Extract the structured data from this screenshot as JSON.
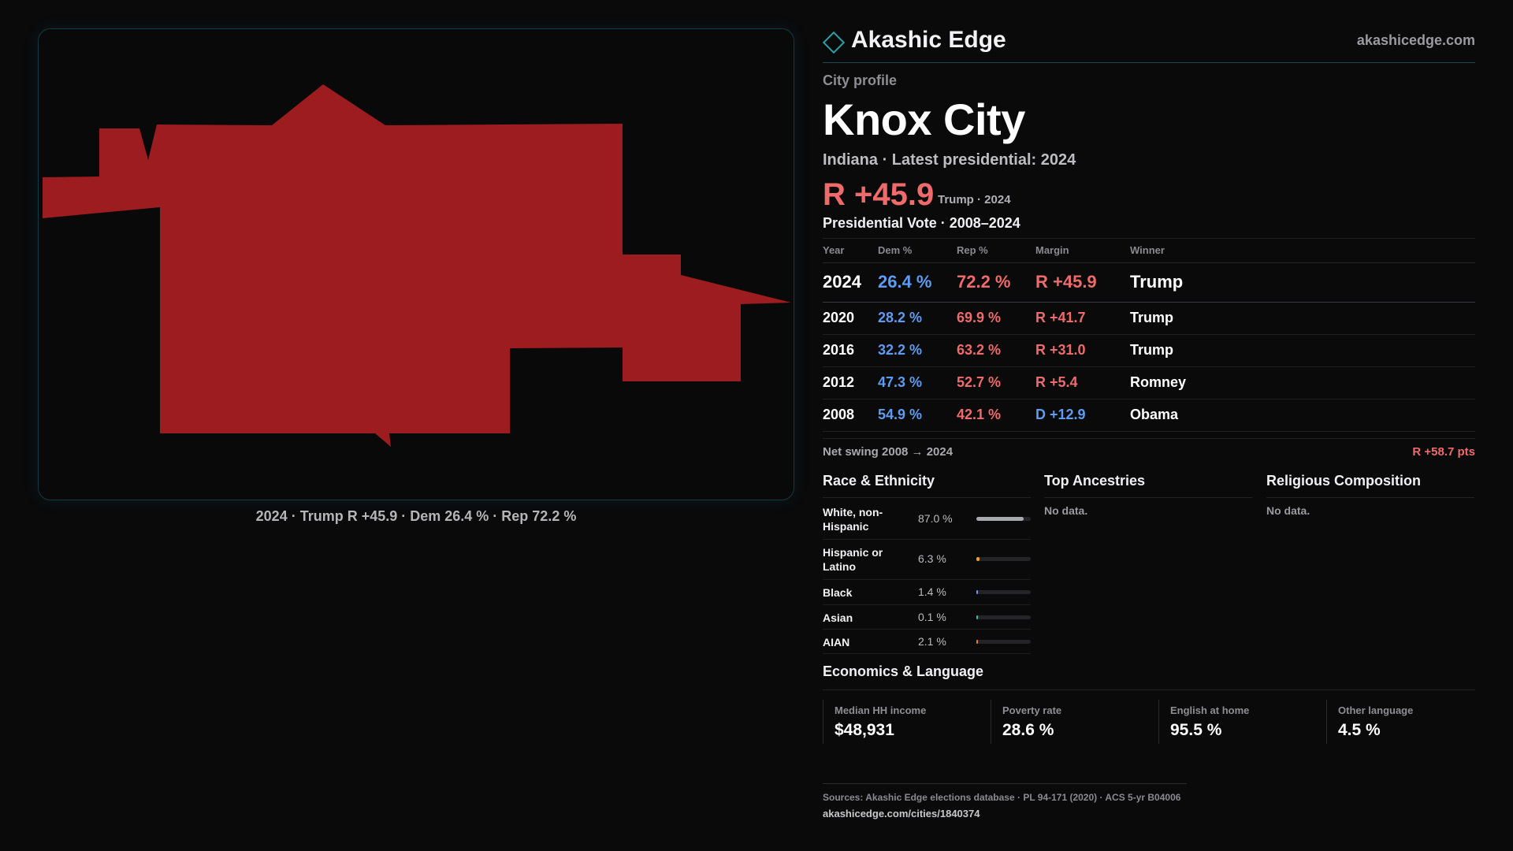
{
  "brand": {
    "name": "Akashic Edge",
    "url": "akashicedge.com"
  },
  "profile": {
    "eyebrow": "City profile",
    "city": "Knox City",
    "subtitle": "Indiana · Latest presidential: 2024",
    "headline_margin": "R +45.9",
    "headline_note": "Trump · 2024"
  },
  "map": {
    "caption": "2024 · Trump R +45.9 · Dem 26.4 % · Rep 72.2 %",
    "fill_color": "#9c1c1f",
    "border_color": "#123a44"
  },
  "votes": {
    "title": "Presidential Vote · 2008–2024",
    "headers": [
      "Year",
      "Dem %",
      "Rep %",
      "Margin",
      "Winner"
    ],
    "rows": [
      {
        "year": "2024",
        "dem": "26.4 %",
        "rep": "72.2 %",
        "margin": "R +45.9",
        "party": "R",
        "winner": "Trump"
      },
      {
        "year": "2020",
        "dem": "28.2 %",
        "rep": "69.9 %",
        "margin": "R +41.7",
        "party": "R",
        "winner": "Trump"
      },
      {
        "year": "2016",
        "dem": "32.2 %",
        "rep": "63.2 %",
        "margin": "R +31.0",
        "party": "R",
        "winner": "Trump"
      },
      {
        "year": "2012",
        "dem": "47.3 %",
        "rep": "52.7 %",
        "margin": "R +5.4",
        "party": "R",
        "winner": "Romney"
      },
      {
        "year": "2008",
        "dem": "54.9 %",
        "rep": "42.1 %",
        "margin": "D +12.9",
        "party": "D",
        "winner": "Obama"
      }
    ],
    "swing_label": "Net swing 2008 → 2024",
    "swing_value": "R +58.7 pts"
  },
  "race": {
    "title": "Race & Ethnicity",
    "rows": [
      {
        "label": "White, non-Hispanic",
        "pct": "87.0 %",
        "value": 0.87,
        "color": "#a9aab0"
      },
      {
        "label": "Hispanic or Latino",
        "pct": "6.3 %",
        "value": 0.063,
        "color": "#f0a020"
      },
      {
        "label": "Black",
        "pct": "1.4 %",
        "value": 0.014,
        "color": "#7f8cff"
      },
      {
        "label": "Asian",
        "pct": "0.1 %",
        "value": 0.001,
        "color": "#30c0a0"
      },
      {
        "label": "AIAN",
        "pct": "2.1 %",
        "value": 0.021,
        "color": "#f07a30"
      }
    ]
  },
  "ancestries": {
    "title": "Top Ancestries",
    "empty": "No data."
  },
  "religion": {
    "title": "Religious Composition",
    "empty": "No data."
  },
  "economics": {
    "title": "Economics & Language",
    "cards": [
      {
        "label": "Median HH income",
        "value": "$48,931"
      },
      {
        "label": "Poverty rate",
        "value": "28.6 %"
      },
      {
        "label": "English at home",
        "value": "95.5 %"
      },
      {
        "label": "Other language",
        "value": "4.5 %"
      }
    ]
  },
  "footer": {
    "sources": "Sources: Akashic Edge elections database · PL 94-171 (2020) · ACS 5-yr B04006",
    "url": "akashicedge.com/cities/1840374"
  }
}
